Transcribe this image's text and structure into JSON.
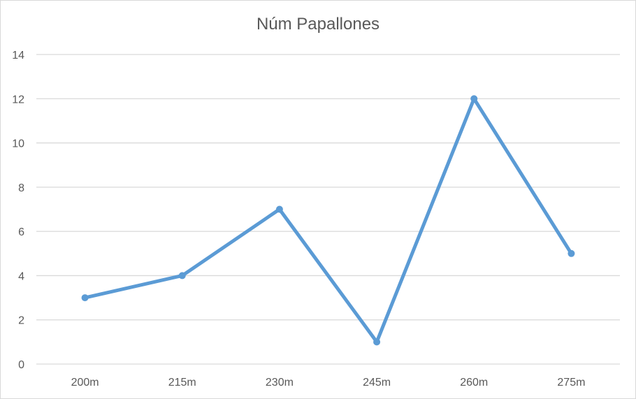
{
  "chart_data": {
    "type": "line",
    "title": "Núm Papallones",
    "xlabel": "",
    "ylabel": "",
    "categories": [
      "200m",
      "215m",
      "230m",
      "245m",
      "260m",
      "275m"
    ],
    "series": [
      {
        "values": [
          3,
          4,
          7,
          1,
          12,
          5
        ],
        "color": "#5b9bd5"
      }
    ],
    "ylim": [
      0,
      14
    ],
    "yticks": [
      "0",
      "2",
      "4",
      "6",
      "8",
      "10",
      "12",
      "14"
    ],
    "grid": true,
    "legend": "none",
    "colors": {
      "gridline": "#d9d9d9",
      "text": "#595959",
      "series": "#5b9bd5"
    }
  }
}
